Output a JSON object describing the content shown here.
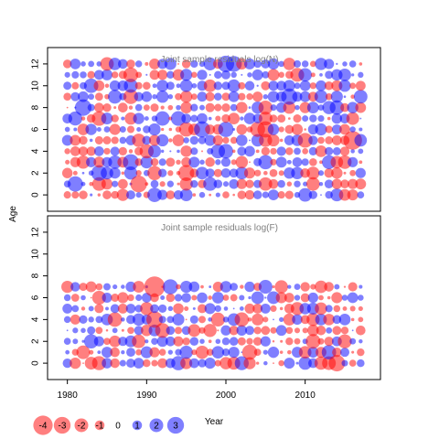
{
  "chart_data": {
    "type": "scatter",
    "encoding": "bubble",
    "xlabel": "Year",
    "ylabel": "Age",
    "xlim": [
      1977.5,
      2019.5
    ],
    "x_ticks": [
      "1980",
      "1990",
      "2000",
      "2010"
    ],
    "x_tick_values": [
      1980,
      1990,
      2000,
      2010
    ],
    "colors": {
      "positive": "#FF0000",
      "negative": "#0000FF"
    },
    "panels": [
      {
        "title": "Joint sample residuals log(N)",
        "ylim": [
          -1.5,
          13.5
        ],
        "y_ticks": [
          "0",
          "2",
          "4",
          "6",
          "8",
          "10",
          "12"
        ],
        "y_tick_values": [
          0,
          2,
          4,
          6,
          8,
          10,
          12
        ],
        "years": [
          1980,
          2017
        ],
        "ages": [
          0,
          12
        ],
        "seed": 7
      },
      {
        "title": "Joint sample residuals log(F)",
        "ylim": [
          -1.5,
          13.5
        ],
        "y_ticks": [
          "0",
          "2",
          "4",
          "6",
          "8",
          "10",
          "12"
        ],
        "y_tick_values": [
          0,
          2,
          4,
          6,
          8,
          10,
          12
        ],
        "years": [
          1980,
          2017
        ],
        "ages": [
          0,
          7
        ],
        "seed": 19
      }
    ],
    "legend": {
      "position": "bottom-left",
      "labels": [
        "-4",
        "-3",
        "-2",
        "-1",
        "0",
        "1",
        "2",
        "3"
      ],
      "values": [
        -4,
        -3,
        -2,
        -1,
        0,
        1,
        2,
        3
      ]
    }
  }
}
